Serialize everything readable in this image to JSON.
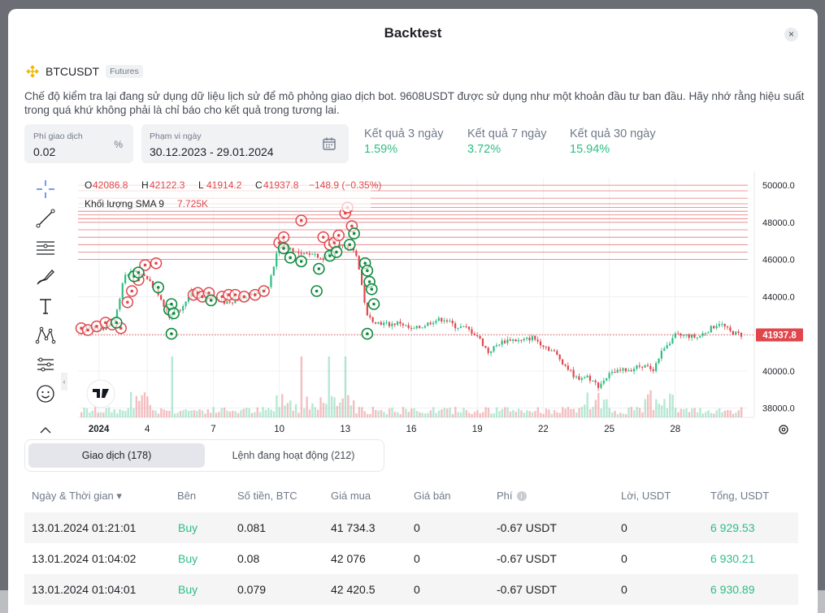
{
  "modal": {
    "title": "Backtest",
    "close_symbol": "×"
  },
  "symbol": {
    "name": "BTCUSDT",
    "badge": "Futures"
  },
  "description": "Chế độ kiểm tra lại đang sử dụng dữ liệu lịch sử để mô phỏng giao dịch bot. 9608USDT được sử dụng như một khoản đầu tư ban đầu. Hãy nhớ rằng hiệu suất trong quá khứ không phải là chỉ báo cho kết quả trong tương lai.",
  "fee": {
    "label": "Phí giao dịch",
    "value": "0.02",
    "unit": "%"
  },
  "range": {
    "label": "Phạm vi ngày",
    "value": "30.12.2023 - 29.01.2024"
  },
  "results": [
    {
      "label": "Kết quả 3 ngày",
      "value": "1.59%"
    },
    {
      "label": "Kết quả 7 ngày",
      "value": "3.72%"
    },
    {
      "label": "Kết quả 30 ngày",
      "value": "15.94%"
    }
  ],
  "chart_data": {
    "type": "candlestick",
    "legend": {
      "o_label": "O",
      "o": "42086.8",
      "h_label": "H",
      "h": "42122.3",
      "l_label": "L",
      "l": "41914.2",
      "c_label": "C",
      "c": "41937.8",
      "change": "−148.9 (−0.35%)",
      "volume_label": "Khối lượng SMA 9",
      "volume_value": "7.725K"
    },
    "y_ticks": [
      "50000.0",
      "48000.0",
      "46000.0",
      "44000.0",
      "42000.0",
      "40000.0",
      "38000.0"
    ],
    "x_ticks": [
      "2024",
      "4",
      "7",
      "10",
      "13",
      "16",
      "19",
      "22",
      "25",
      "28"
    ],
    "last_price": "41937.8",
    "ylim": [
      37500,
      50400
    ],
    "price_path": [
      [
        0,
        42200
      ],
      [
        0.5,
        42400
      ],
      [
        1,
        42300
      ],
      [
        1.5,
        42800
      ],
      [
        2,
        45200
      ],
      [
        2.5,
        45400
      ],
      [
        3,
        45000
      ],
      [
        3.5,
        44200
      ],
      [
        4,
        42900
      ],
      [
        4.5,
        43300
      ],
      [
        5,
        44200
      ],
      [
        5.5,
        44000
      ],
      [
        6,
        43900
      ],
      [
        6.5,
        43700
      ],
      [
        7,
        43800
      ],
      [
        7.5,
        44000
      ],
      [
        8,
        44200
      ],
      [
        8.5,
        44500
      ],
      [
        9,
        46800
      ],
      [
        9.5,
        46600
      ],
      [
        10,
        46200
      ],
      [
        10.5,
        46400
      ],
      [
        11,
        46000
      ],
      [
        11.5,
        46800
      ],
      [
        12,
        46700
      ],
      [
        12.5,
        46300
      ],
      [
        13,
        42900
      ],
      [
        13.5,
        42600
      ],
      [
        14,
        42500
      ],
      [
        14.5,
        42600
      ],
      [
        15,
        42200
      ],
      [
        15.5,
        42400
      ],
      [
        16,
        42700
      ],
      [
        16.5,
        42800
      ],
      [
        17,
        42400
      ],
      [
        17.5,
        42300
      ],
      [
        18,
        41900
      ],
      [
        18.5,
        41000
      ],
      [
        19,
        41500
      ],
      [
        19.5,
        41700
      ],
      [
        20,
        41600
      ],
      [
        20.5,
        41800
      ],
      [
        21,
        41400
      ],
      [
        21.5,
        41000
      ],
      [
        22,
        40300
      ],
      [
        22.5,
        39600
      ],
      [
        23,
        39700
      ],
      [
        23.5,
        39200
      ],
      [
        24,
        39800
      ],
      [
        24.5,
        40000
      ],
      [
        25,
        40100
      ],
      [
        25.5,
        40300
      ],
      [
        26,
        40100
      ],
      [
        26.5,
        41300
      ],
      [
        27,
        41900
      ],
      [
        27.5,
        41900
      ],
      [
        28,
        41800
      ],
      [
        28.5,
        42200
      ],
      [
        29,
        42600
      ],
      [
        29.5,
        42100
      ],
      [
        30,
        41937.8
      ]
    ],
    "resistance_levels": [
      46000,
      46400,
      46800,
      47200,
      47600,
      48000,
      48200,
      48400,
      48600,
      48800,
      49000,
      49300,
      49700,
      50000
    ],
    "sell_markers": [
      [
        0,
        42300
      ],
      [
        0.3,
        42200
      ],
      [
        0.7,
        42400
      ],
      [
        1.1,
        42600
      ],
      [
        1.4,
        42500
      ],
      [
        1.8,
        42300
      ],
      [
        2.1,
        43700
      ],
      [
        2.3,
        44300
      ],
      [
        2.6,
        44900
      ],
      [
        2.9,
        45700
      ],
      [
        3.4,
        45800
      ],
      [
        5.1,
        44100
      ],
      [
        5.3,
        44200
      ],
      [
        5.5,
        44000
      ],
      [
        5.8,
        44200
      ],
      [
        6.4,
        44000
      ],
      [
        6.7,
        44100
      ],
      [
        7.0,
        44100
      ],
      [
        7.4,
        44000
      ],
      [
        7.9,
        44100
      ],
      [
        8.3,
        44300
      ],
      [
        9.0,
        46900
      ],
      [
        9.2,
        47200
      ],
      [
        10.0,
        48100
      ],
      [
        11.0,
        47200
      ],
      [
        11.3,
        46800
      ],
      [
        11.5,
        46900
      ],
      [
        11.7,
        47300
      ],
      [
        12.0,
        48500
      ],
      [
        12.1,
        48800
      ],
      [
        12.3,
        47800
      ]
    ],
    "buy_markers": [
      [
        1.6,
        42600
      ],
      [
        2.4,
        45100
      ],
      [
        2.6,
        45300
      ],
      [
        3.5,
        44500
      ],
      [
        4.0,
        43300
      ],
      [
        4.1,
        43600
      ],
      [
        4.2,
        43100
      ],
      [
        4.1,
        42000
      ],
      [
        5.9,
        43800
      ],
      [
        9.2,
        46600
      ],
      [
        9.5,
        46100
      ],
      [
        10.0,
        45900
      ],
      [
        10.8,
        45500
      ],
      [
        10.7,
        44300
      ],
      [
        11.3,
        46200
      ],
      [
        11.6,
        46400
      ],
      [
        12.4,
        47400
      ],
      [
        12.2,
        46800
      ],
      [
        12.9,
        45800
      ],
      [
        13.0,
        45400
      ],
      [
        13.1,
        44800
      ],
      [
        13.2,
        44400
      ],
      [
        13.3,
        43600
      ],
      [
        13.0,
        42000
      ]
    ]
  },
  "tabs": [
    {
      "label": "Giao dịch (178)",
      "active": true
    },
    {
      "label": "Lệnh đang hoạt động (212)",
      "active": false
    }
  ],
  "table": {
    "headers": [
      "Ngày & Thời gian ▾",
      "Bên",
      "Số tiền, BTC",
      "Giá mua",
      "Giá bán",
      "Phí",
      "Lời, USDT",
      "Tổng, USDT"
    ],
    "rows": [
      [
        "13.01.2024 01:21:01",
        "Buy",
        "0.081",
        "41 734.3",
        "0",
        "-0.67 USDT",
        "0",
        "6 929.53"
      ],
      [
        "13.01.2024 01:04:02",
        "Buy",
        "0.08",
        "42 076",
        "0",
        "-0.67 USDT",
        "0",
        "6 930.21"
      ],
      [
        "13.01.2024 01:04:01",
        "Buy",
        "0.079",
        "42 420.5",
        "0",
        "-0.67 USDT",
        "0",
        "6 930.89"
      ]
    ]
  },
  "colors": {
    "accent_green": "#2ebd85",
    "sell_red": "#e0474c",
    "buy_green": "#0f8a3f",
    "binance_yellow": "#f0b90b"
  },
  "icons": {
    "toolbar": [
      "crosshair-icon",
      "trend-line-icon",
      "horizontal-lines-icon",
      "brush-icon",
      "text-icon",
      "pattern-icon",
      "measure-icon",
      "emoji-icon",
      "more-tools-icon"
    ],
    "chart": [
      "settings-gear-icon",
      "tradingview-logo"
    ]
  }
}
